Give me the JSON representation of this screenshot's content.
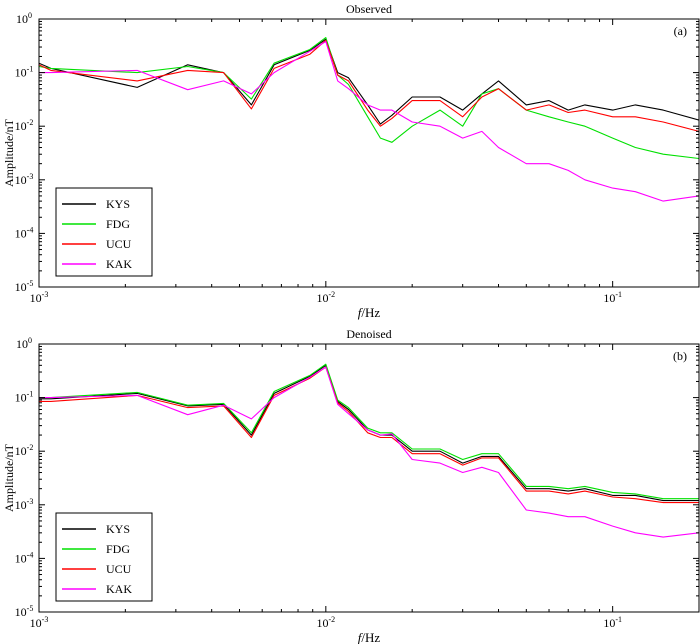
{
  "chart_data": [
    {
      "type": "line",
      "title": "Observed",
      "panel_label": "(a)",
      "xlabel_italic": "f",
      "xlabel_unit": "/Hz",
      "ylabel": "Amplitude/nT",
      "xscale": "log",
      "yscale": "log",
      "xlim": [
        0.001,
        0.2
      ],
      "ylim": [
        1e-05,
        1
      ],
      "x_ticks": [
        {
          "base": "10",
          "exp": "-3"
        },
        {
          "base": "10",
          "exp": "-2"
        },
        {
          "base": "10",
          "exp": "-1"
        }
      ],
      "y_ticks": [
        {
          "base": "10",
          "exp": "-5"
        },
        {
          "base": "10",
          "exp": "-4"
        },
        {
          "base": "10",
          "exp": "-3"
        },
        {
          "base": "10",
          "exp": "-2"
        },
        {
          "base": "10",
          "exp": "-1"
        },
        {
          "base": "10",
          "exp": "0"
        }
      ],
      "legend_position": "bottom-left",
      "series": [
        {
          "name": "KYS",
          "color": "#000000",
          "x": [
            0.001,
            0.0011,
            0.0022,
            0.0033,
            0.0044,
            0.0055,
            0.0066,
            0.0088,
            0.01,
            0.011,
            0.012,
            0.014,
            0.0155,
            0.017,
            0.02,
            0.025,
            0.03,
            0.035,
            0.04,
            0.05,
            0.06,
            0.07,
            0.08,
            0.1,
            0.12,
            0.15,
            0.2
          ],
          "y": [
            0.15,
            0.12,
            0.053,
            0.14,
            0.1,
            0.025,
            0.14,
            0.26,
            0.42,
            0.1,
            0.08,
            0.025,
            0.011,
            0.016,
            0.035,
            0.035,
            0.02,
            0.04,
            0.07,
            0.025,
            0.03,
            0.02,
            0.025,
            0.02,
            0.025,
            0.02,
            0.013
          ]
        },
        {
          "name": "FDG",
          "color": "#00e000",
          "x": [
            0.001,
            0.0011,
            0.0022,
            0.0033,
            0.0044,
            0.0055,
            0.0066,
            0.0088,
            0.01,
            0.011,
            0.012,
            0.014,
            0.0155,
            0.017,
            0.02,
            0.025,
            0.03,
            0.035,
            0.04,
            0.05,
            0.06,
            0.07,
            0.08,
            0.1,
            0.12,
            0.15,
            0.2
          ],
          "y": [
            0.13,
            0.12,
            0.1,
            0.13,
            0.1,
            0.032,
            0.15,
            0.27,
            0.45,
            0.09,
            0.06,
            0.015,
            0.006,
            0.005,
            0.01,
            0.02,
            0.01,
            0.04,
            0.05,
            0.02,
            0.015,
            0.012,
            0.01,
            0.006,
            0.004,
            0.003,
            0.0025
          ]
        },
        {
          "name": "UCU",
          "color": "#ff0000",
          "x": [
            0.001,
            0.0011,
            0.0022,
            0.0033,
            0.0044,
            0.0055,
            0.0066,
            0.0088,
            0.01,
            0.011,
            0.012,
            0.014,
            0.0155,
            0.017,
            0.02,
            0.025,
            0.03,
            0.035,
            0.04,
            0.05,
            0.06,
            0.07,
            0.08,
            0.1,
            0.12,
            0.15,
            0.2
          ],
          "y": [
            0.14,
            0.11,
            0.07,
            0.11,
            0.1,
            0.021,
            0.12,
            0.22,
            0.4,
            0.09,
            0.07,
            0.02,
            0.01,
            0.014,
            0.03,
            0.03,
            0.015,
            0.035,
            0.05,
            0.02,
            0.025,
            0.018,
            0.02,
            0.015,
            0.015,
            0.012,
            0.008
          ]
        },
        {
          "name": "KAK",
          "color": "#ff00ff",
          "x": [
            0.001,
            0.0011,
            0.0022,
            0.0033,
            0.0044,
            0.0055,
            0.0066,
            0.0088,
            0.01,
            0.011,
            0.012,
            0.014,
            0.0155,
            0.017,
            0.02,
            0.025,
            0.03,
            0.035,
            0.04,
            0.05,
            0.06,
            0.07,
            0.08,
            0.1,
            0.12,
            0.15,
            0.2
          ],
          "y": [
            0.1,
            0.1,
            0.11,
            0.048,
            0.07,
            0.04,
            0.1,
            0.25,
            0.38,
            0.07,
            0.05,
            0.025,
            0.02,
            0.02,
            0.012,
            0.01,
            0.006,
            0.008,
            0.004,
            0.002,
            0.002,
            0.0015,
            0.001,
            0.0007,
            0.0006,
            0.0004,
            0.0005
          ]
        }
      ]
    },
    {
      "type": "line",
      "title": "Denoised",
      "panel_label": "(b)",
      "xlabel_italic": "f",
      "xlabel_unit": "/Hz",
      "ylabel": "Amplitude/nT",
      "xscale": "log",
      "yscale": "log",
      "xlim": [
        0.001,
        0.2
      ],
      "ylim": [
        1e-05,
        1
      ],
      "x_ticks": [
        {
          "base": "10",
          "exp": "-3"
        },
        {
          "base": "10",
          "exp": "-2"
        },
        {
          "base": "10",
          "exp": "-1"
        }
      ],
      "y_ticks": [
        {
          "base": "10",
          "exp": "-5"
        },
        {
          "base": "10",
          "exp": "-4"
        },
        {
          "base": "10",
          "exp": "-3"
        },
        {
          "base": "10",
          "exp": "-2"
        },
        {
          "base": "10",
          "exp": "-1"
        },
        {
          "base": "10",
          "exp": "0"
        }
      ],
      "legend_position": "bottom-left",
      "series": [
        {
          "name": "KYS",
          "color": "#000000",
          "x": [
            0.001,
            0.0011,
            0.0022,
            0.0033,
            0.0044,
            0.0055,
            0.0066,
            0.0088,
            0.01,
            0.011,
            0.012,
            0.014,
            0.0155,
            0.017,
            0.02,
            0.025,
            0.03,
            0.035,
            0.04,
            0.05,
            0.06,
            0.07,
            0.08,
            0.1,
            0.12,
            0.15,
            0.2
          ],
          "y": [
            0.095,
            0.095,
            0.12,
            0.07,
            0.075,
            0.02,
            0.12,
            0.25,
            0.4,
            0.085,
            0.06,
            0.025,
            0.02,
            0.02,
            0.01,
            0.01,
            0.006,
            0.008,
            0.008,
            0.002,
            0.002,
            0.0018,
            0.002,
            0.0015,
            0.0015,
            0.0012,
            0.0012
          ]
        },
        {
          "name": "FDG",
          "color": "#00e000",
          "x": [
            0.001,
            0.0011,
            0.0022,
            0.0033,
            0.0044,
            0.0055,
            0.0066,
            0.0088,
            0.01,
            0.011,
            0.012,
            0.014,
            0.0155,
            0.017,
            0.02,
            0.025,
            0.03,
            0.035,
            0.04,
            0.05,
            0.06,
            0.07,
            0.08,
            0.1,
            0.12,
            0.15,
            0.2
          ],
          "y": [
            0.1,
            0.1,
            0.125,
            0.072,
            0.078,
            0.022,
            0.13,
            0.26,
            0.42,
            0.09,
            0.065,
            0.027,
            0.022,
            0.022,
            0.011,
            0.011,
            0.007,
            0.009,
            0.009,
            0.0022,
            0.0022,
            0.002,
            0.0022,
            0.0017,
            0.0016,
            0.0013,
            0.0013
          ]
        },
        {
          "name": "UCU",
          "color": "#ff0000",
          "x": [
            0.001,
            0.0011,
            0.0022,
            0.0033,
            0.0044,
            0.0055,
            0.0066,
            0.0088,
            0.01,
            0.011,
            0.012,
            0.014,
            0.0155,
            0.017,
            0.02,
            0.025,
            0.03,
            0.035,
            0.04,
            0.05,
            0.06,
            0.07,
            0.08,
            0.1,
            0.12,
            0.15,
            0.2
          ],
          "y": [
            0.085,
            0.085,
            0.11,
            0.065,
            0.07,
            0.018,
            0.11,
            0.23,
            0.37,
            0.08,
            0.055,
            0.022,
            0.018,
            0.018,
            0.009,
            0.009,
            0.0055,
            0.0075,
            0.0075,
            0.0018,
            0.0018,
            0.0016,
            0.0018,
            0.0014,
            0.0013,
            0.0011,
            0.0011
          ]
        },
        {
          "name": "KAK",
          "color": "#ff00ff",
          "x": [
            0.001,
            0.0011,
            0.0022,
            0.0033,
            0.0044,
            0.0055,
            0.0066,
            0.0088,
            0.01,
            0.011,
            0.012,
            0.014,
            0.0155,
            0.017,
            0.02,
            0.025,
            0.03,
            0.035,
            0.04,
            0.05,
            0.06,
            0.07,
            0.08,
            0.1,
            0.12,
            0.15,
            0.2
          ],
          "y": [
            0.1,
            0.1,
            0.11,
            0.048,
            0.072,
            0.04,
            0.1,
            0.24,
            0.37,
            0.075,
            0.05,
            0.025,
            0.02,
            0.021,
            0.007,
            0.006,
            0.004,
            0.005,
            0.004,
            0.0008,
            0.0007,
            0.0006,
            0.0006,
            0.0004,
            0.0003,
            0.00025,
            0.0003
          ]
        }
      ]
    }
  ]
}
